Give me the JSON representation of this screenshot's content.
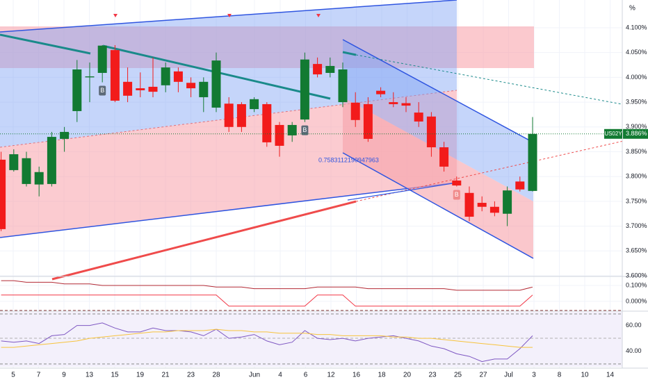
{
  "chart_data": [
    {
      "type": "candlestick",
      "symbol": "US02Y",
      "unit": "%",
      "last_price": {
        "value": 3.886,
        "label": "3.886%"
      },
      "annotation": "0.7583112190947963",
      "up_color": "#127a32",
      "down_color": "#f21b1b",
      "ylim": [
        3.6,
        4.156
      ],
      "yticks": [
        {
          "value": 3.6,
          "label": "3.600%"
        },
        {
          "value": 3.65,
          "label": "3.650%"
        },
        {
          "value": 3.7,
          "label": "3.700%"
        },
        {
          "value": 3.75,
          "label": "3.750%"
        },
        {
          "value": 3.8,
          "label": "3.800%"
        },
        {
          "value": 3.85,
          "label": "3.850%"
        },
        {
          "value": 3.9,
          "label": "3.900%"
        },
        {
          "value": 3.95,
          "label": "3.950%"
        },
        {
          "value": 4.0,
          "label": "4.000%"
        },
        {
          "value": 4.05,
          "label": "4.050%"
        },
        {
          "value": 4.1,
          "label": "4.100%"
        }
      ],
      "x_labels": [
        "5",
        "7",
        "9",
        "13",
        "15",
        "19",
        "21",
        "23",
        "28",
        "Jun",
        "4",
        "6",
        "12",
        "16",
        "18",
        "20",
        "23",
        "25",
        "27",
        "Jul",
        "3",
        "8",
        "10",
        "14"
      ],
      "open": [
        3.834,
        3.813,
        3.785,
        3.784,
        3.785,
        3.876,
        3.932,
        4.0,
        4.009,
        4.055,
        3.991,
        3.978,
        3.981,
        3.984,
        4.012,
        3.989,
        3.96,
        3.939,
        3.947,
        3.946,
        3.936,
        3.946,
        3.904,
        3.883,
        3.915,
        4.027,
        4.009,
        3.95,
        3.949,
        3.946,
        3.973,
        3.95,
        3.948,
        3.929,
        3.921,
        3.859,
        3.792,
        3.767,
        3.747,
        3.739,
        3.725,
        3.79,
        3.771
      ],
      "high": [
        3.85,
        3.855,
        3.85,
        3.82,
        3.89,
        3.9,
        4.035,
        4.03,
        4.065,
        4.065,
        4.02,
        4.01,
        4.04,
        4.03,
        4.02,
        4.0,
        4.0,
        4.05,
        3.96,
        3.95,
        3.96,
        3.95,
        3.91,
        3.91,
        4.05,
        4.04,
        4.04,
        4.03,
        3.97,
        3.96,
        3.98,
        3.97,
        3.96,
        3.95,
        3.93,
        3.87,
        3.8,
        3.78,
        3.76,
        3.75,
        3.78,
        3.8,
        3.92
      ],
      "low": [
        3.69,
        3.81,
        3.78,
        3.76,
        3.78,
        3.85,
        3.91,
        3.95,
        3.99,
        3.95,
        3.95,
        3.96,
        3.96,
        3.97,
        3.97,
        3.96,
        3.93,
        3.93,
        3.89,
        3.89,
        3.93,
        3.86,
        3.84,
        3.87,
        3.91,
        4.0,
        4.0,
        3.94,
        3.9,
        3.87,
        3.96,
        3.94,
        3.93,
        3.9,
        3.84,
        3.81,
        3.78,
        3.71,
        3.73,
        3.72,
        3.7,
        3.77,
        3.77
      ],
      "close": [
        3.694,
        3.845,
        3.837,
        3.809,
        3.88,
        3.89,
        4.016,
        4.002,
        4.064,
        3.953,
        3.963,
        3.974,
        3.971,
        4.02,
        3.991,
        3.978,
        3.991,
        4.034,
        3.9,
        3.9,
        3.956,
        3.869,
        3.862,
        3.904,
        4.036,
        4.006,
        4.023,
        4.016,
        3.914,
        3.876,
        3.966,
        3.946,
        3.943,
        3.911,
        3.859,
        3.82,
        3.782,
        3.719,
        3.739,
        3.727,
        3.772,
        3.774,
        3.886
      ],
      "signals": [
        {
          "label": "B",
          "at": 8,
          "color": "#5d6a78"
        },
        {
          "label": "B",
          "at": 24,
          "color": "#5d6a78"
        },
        {
          "label": "B",
          "at": 36,
          "color": "#f08a8a"
        }
      ]
    },
    {
      "type": "line",
      "ylim": [
        -0.057,
        0.148
      ],
      "yticks": [
        {
          "value": 0,
          "label": "0.000%"
        },
        {
          "value": 0.1,
          "label": "0.100%"
        }
      ],
      "series": [
        {
          "color": "#b22833",
          "values": [
            0.13,
            0.13,
            0.12,
            0.12,
            0.12,
            0.11,
            0.11,
            0.11,
            0.1,
            0.1,
            0.1,
            0.1,
            0.1,
            0.1,
            0.1,
            0.1,
            0.1,
            0.09,
            0.09,
            0.09,
            0.08,
            0.08,
            0.08,
            0.08,
            0.08,
            0.09,
            0.09,
            0.09,
            0.09,
            0.08,
            0.08,
            0.08,
            0.08,
            0.08,
            0.08,
            0.08,
            0.07,
            0.07,
            0.07,
            0.07,
            0.07,
            0.07,
            0.09
          ]
        },
        {
          "color": "#f23645",
          "values": [
            0.04,
            0.04,
            0.04,
            0.04,
            0.04,
            0.04,
            0.04,
            0.04,
            0.04,
            0.04,
            0.04,
            0.04,
            0.04,
            0.04,
            0.04,
            0.04,
            0.04,
            0.04,
            -0.03,
            -0.03,
            -0.03,
            -0.03,
            -0.03,
            -0.03,
            -0.03,
            0.04,
            0.04,
            0.04,
            -0.03,
            -0.03,
            -0.03,
            -0.03,
            -0.03,
            -0.03,
            -0.03,
            -0.03,
            -0.03,
            -0.03,
            -0.03,
            -0.03,
            -0.03,
            -0.03,
            0.04
          ]
        }
      ]
    },
    {
      "type": "line",
      "ylim": [
        28,
        70
      ],
      "yticks": [
        {
          "value": 40,
          "label": "40.00"
        },
        {
          "value": 60,
          "label": "60.00"
        }
      ],
      "series": [
        {
          "color": "#7e57c2",
          "values": [
            48,
            47,
            48,
            46,
            52,
            53,
            60,
            60,
            62,
            58,
            55,
            55,
            58,
            56,
            56,
            55,
            52,
            57,
            50,
            51,
            53,
            48,
            45,
            47,
            56,
            50,
            49,
            50,
            48,
            50,
            51,
            52,
            50,
            48,
            44,
            42,
            38,
            36,
            32,
            34,
            34,
            42,
            52
          ]
        },
        {
          "color": "#f7c33c",
          "values": [
            43,
            43,
            44,
            45,
            46,
            47,
            48,
            50,
            51,
            52,
            53,
            54,
            55,
            55,
            56,
            56,
            56,
            57,
            56,
            56,
            55,
            55,
            54,
            54,
            54,
            53,
            53,
            52,
            52,
            52,
            52,
            51,
            51,
            50,
            50,
            49,
            48,
            47,
            46,
            45,
            44,
            43,
            43
          ]
        }
      ]
    }
  ]
}
